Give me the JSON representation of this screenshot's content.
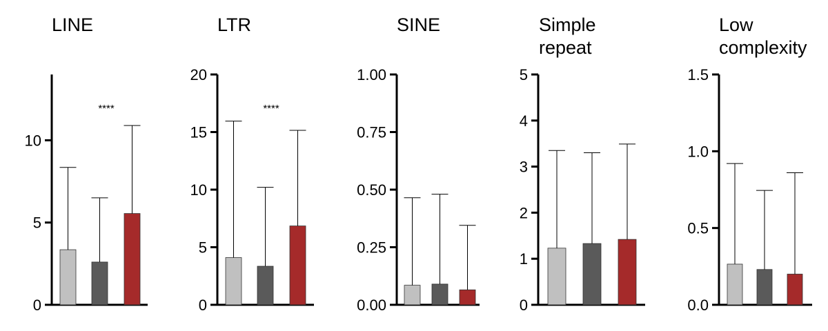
{
  "chart_data": [
    {
      "type": "bar",
      "title": [
        "LINE"
      ],
      "ylim": [
        0,
        14
      ],
      "yticks": [
        0,
        5,
        10
      ],
      "categories": [
        "",
        "",
        ""
      ],
      "values": [
        3.35,
        2.6,
        5.55
      ],
      "errors_upper": [
        8.35,
        6.5,
        10.9
      ],
      "colors": [
        "#c0c0c0",
        "#5a5a5a",
        "#a52a2a"
      ],
      "significance": "****"
    },
    {
      "type": "bar",
      "title": [
        "LTR"
      ],
      "ylim": [
        0,
        20
      ],
      "yticks": [
        0,
        5,
        10,
        15,
        20
      ],
      "categories": [
        "",
        "",
        ""
      ],
      "values": [
        4.1,
        3.35,
        6.85
      ],
      "errors_upper": [
        15.95,
        10.2,
        15.15
      ],
      "colors": [
        "#c0c0c0",
        "#5a5a5a",
        "#a52a2a"
      ],
      "significance": "****"
    },
    {
      "type": "bar",
      "title": [
        "SINE"
      ],
      "ylim": [
        0,
        1.0
      ],
      "yticks": [
        "0.00",
        "0.25",
        "0.50",
        "0.75",
        "1.00"
      ],
      "categories": [
        "",
        "",
        ""
      ],
      "values": [
        0.085,
        0.09,
        0.065
      ],
      "errors_upper": [
        0.465,
        0.48,
        0.345
      ],
      "colors": [
        "#c0c0c0",
        "#5a5a5a",
        "#a52a2a"
      ],
      "significance": ""
    },
    {
      "type": "bar",
      "title": [
        "Simple",
        "repeat"
      ],
      "ylim": [
        0,
        5
      ],
      "yticks": [
        0,
        1,
        2,
        3,
        4,
        5
      ],
      "categories": [
        "",
        "",
        ""
      ],
      "values": [
        1.23,
        1.33,
        1.42
      ],
      "errors_upper": [
        3.35,
        3.3,
        3.49
      ],
      "colors": [
        "#c0c0c0",
        "#5a5a5a",
        "#a52a2a"
      ],
      "significance": ""
    },
    {
      "type": "bar",
      "title": [
        "Low",
        "complexity"
      ],
      "ylim": [
        0,
        1.5
      ],
      "yticks": [
        "0.0",
        "0.5",
        "1.0",
        "1.5"
      ],
      "categories": [
        "",
        "",
        ""
      ],
      "values": [
        0.265,
        0.23,
        0.2
      ],
      "errors_upper": [
        0.92,
        0.745,
        0.86
      ],
      "colors": [
        "#c0c0c0",
        "#5a5a5a",
        "#a52a2a"
      ],
      "significance": ""
    }
  ]
}
